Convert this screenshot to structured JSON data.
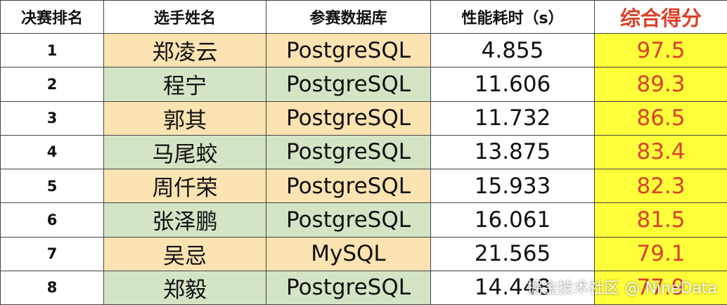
{
  "table": {
    "header": [
      "决赛排名",
      "选手姓名",
      "参赛数据库",
      "性能耗时（s）",
      "综合得分"
    ],
    "rows": [
      [
        "1",
        "郑凌云",
        "PostgreSQL",
        "4.855",
        "97.5"
      ],
      [
        "2",
        "程宁",
        "PostgreSQL",
        "11.606",
        "89.3"
      ],
      [
        "3",
        "郭其",
        "PostgreSQL",
        "11.732",
        "86.5"
      ],
      [
        "4",
        "马尾蛟",
        "PostgreSQL",
        "13.875",
        "83.4"
      ],
      [
        "5",
        "周仟荣",
        "PostgreSQL",
        "15.933",
        "82.3"
      ],
      [
        "6",
        "张泽鹏",
        "PostgreSQL",
        "16.061",
        "81.5"
      ],
      [
        "7",
        "吴忌",
        "MySQL",
        "21.565",
        "79.1"
      ],
      [
        "8",
        "郑毅",
        "PostgreSQL",
        "14.448",
        "77.9"
      ]
    ]
  },
  "watermark": "掘金技术社区 @ NineData"
}
